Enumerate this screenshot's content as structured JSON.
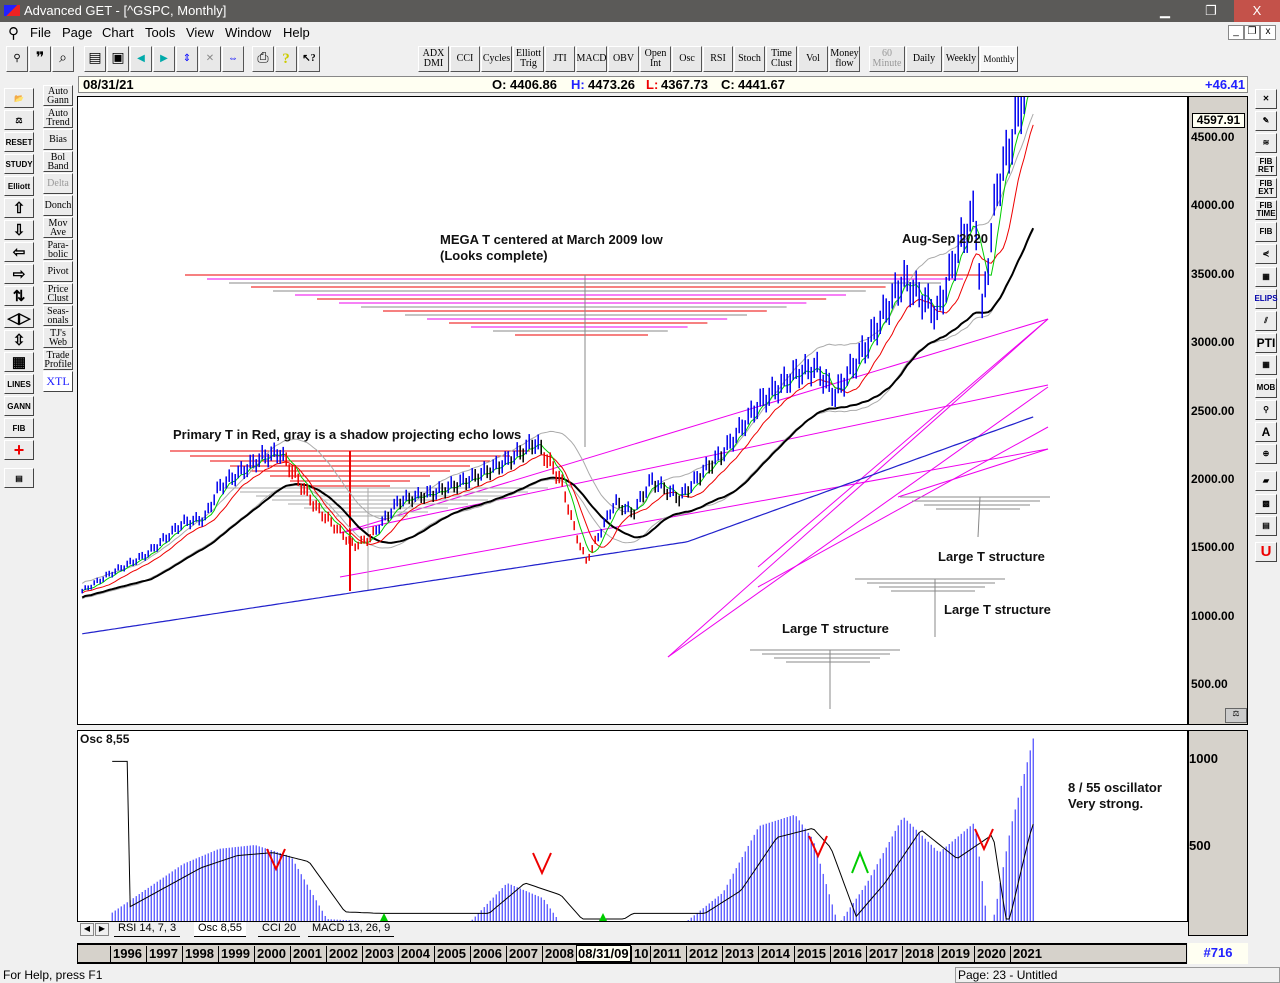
{
  "window": {
    "title": "Advanced GET - [^GSPC, Monthly]",
    "minimize": "▁",
    "restore": "❐",
    "close": "X"
  },
  "menu": [
    "File",
    "Page",
    "Chart",
    "Tools",
    "View",
    "Window",
    "Help"
  ],
  "toolbar_studies": [
    "ADX DMI",
    "CCI",
    "Cycles",
    "Elliott Trig",
    "JTI",
    "MACD",
    "OBV",
    "Open Int",
    "Osc",
    "RSI",
    "Stoch",
    "Time Clust",
    "Vol",
    "Money flow"
  ],
  "toolbar_timeframes": [
    "60 Minute",
    "Daily",
    "Weekly",
    "Monthly"
  ],
  "left_tools": [
    "open",
    "balance",
    "RESET",
    "STUDY",
    "Elliott",
    "up",
    "down",
    "left",
    "right",
    "compress",
    "expand",
    "vertical",
    "grid",
    "LINES",
    "GANN",
    "FIB",
    "crosshair",
    "properties"
  ],
  "left_studies": [
    "Auto Gann",
    "Auto Trend",
    "Bias",
    "Bol Band",
    "Delta",
    "Donch",
    "Mov Ave",
    "Para-bolic",
    "Pivot",
    "Price Clust",
    "Seas-onals",
    "TJ's Web",
    "Trade Profile",
    "XTL"
  ],
  "right_tools": [
    "close",
    "pencil",
    "lines",
    "FIB RET",
    "FIB EXT",
    "FIB TIME",
    "FIB",
    "fan",
    "grid",
    "ELIPS",
    "channels",
    "PTI",
    "table",
    "MOB",
    "search",
    "A",
    "zoom",
    "eraser",
    "pattern",
    "report",
    "magnet"
  ],
  "info": {
    "date": "08/31/21",
    "open_label": "O:",
    "open": "4406.86",
    "high_label": "H:",
    "high": "4473.26",
    "low_label": "L:",
    "low": "4367.73",
    "close_label": "C:",
    "close": "4441.67",
    "change": "+46.41"
  },
  "price_axis": {
    "last": "4597.91",
    "ticks": [
      "4500.00",
      "4000.00",
      "3500.00",
      "3000.00",
      "2500.00",
      "2000.00",
      "1500.00",
      "1000.00",
      "500.00"
    ]
  },
  "osc_panel": {
    "title": "Osc 8,55",
    "ticks": [
      "1000",
      "500"
    ],
    "note1": "8 / 55 oscillator",
    "note2": "Very strong."
  },
  "tabs": [
    "RSI 14, 7, 3",
    "Osc 8,55",
    "CCI 20",
    "MACD 13, 26, 9"
  ],
  "years": [
    "1996",
    "1997",
    "1998",
    "1999",
    "2000",
    "2001",
    "2002",
    "2003",
    "2004",
    "2005",
    "2006",
    "2007",
    "2008",
    "10",
    "2011",
    "2012",
    "2013",
    "2014",
    "2015",
    "2016",
    "2017",
    "2018",
    "2019",
    "2020",
    "2021"
  ],
  "cursor_date": "08/31/09",
  "bar_count": "#716",
  "status": {
    "help": "For Help, press F1",
    "page": "Page: 23 - Untitled"
  },
  "chart_data": {
    "type": "line",
    "title": "^GSPC, Monthly",
    "ylim": [
      0,
      4600
    ],
    "x": [
      1995.2,
      1996,
      1997,
      1998,
      1998.6,
      1999,
      2000.2,
      2000.7,
      2001.7,
      2002.75,
      2003.2,
      2004,
      2005,
      2006,
      2007,
      2007.8,
      2008.5,
      2008.9,
      2009.2,
      2010,
      2010.5,
      2011,
      2011.8,
      2012.5,
      2013,
      2014,
      2015,
      2015.6,
      2016.1,
      2017,
      2018,
      2018.95,
      2019.5,
      2020.0,
      2020.2,
      2020.6,
      2021,
      2021.67
    ],
    "y": [
      470,
      600,
      740,
      970,
      1000,
      1230,
      1450,
      1480,
      1080,
      800,
      860,
      1130,
      1190,
      1290,
      1420,
      1560,
      1280,
      900,
      690,
      1120,
      1040,
      1280,
      1150,
      1360,
      1480,
      1840,
      2060,
      2100,
      1900,
      2270,
      2750,
      2500,
      2950,
      3250,
      2500,
      3400,
      3750,
      4441
    ],
    "osc_x": [
      1996,
      1998,
      1999,
      2000,
      2001,
      2002,
      2003,
      2004,
      2005,
      2006,
      2007,
      2008,
      2009,
      2010,
      2011,
      2012,
      2013,
      2014,
      2015,
      2015.5,
      2016.2,
      2017,
      2018,
      2019,
      2020,
      2020.4,
      2021,
      2021.67
    ],
    "osc_y": [
      40,
      300,
      380,
      400,
      340,
      10,
      0,
      0,
      0,
      0,
      200,
      120,
      -150,
      0,
      0,
      0,
      150,
      500,
      560,
      430,
      -20,
      200,
      550,
      360,
      520,
      -100,
      500,
      1000
    ],
    "annotations": [
      "MEGA T centered at March 2009 low",
      "(Looks complete)",
      "Primary T in Red, gray is a shadow projecting echo lows",
      "Aug-Sep 2020",
      "Large T structure",
      "Large T structure",
      "Large T structure"
    ]
  }
}
